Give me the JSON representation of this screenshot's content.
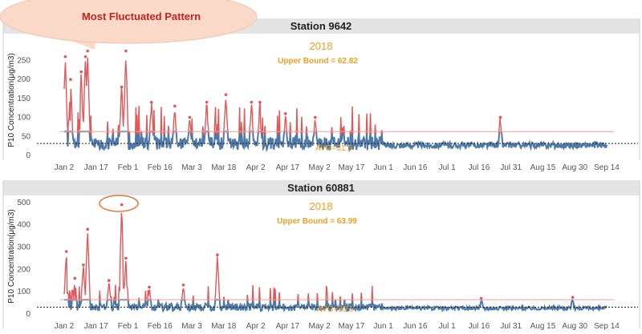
{
  "callout": {
    "text": "Most Fluctuated Pattern"
  },
  "colors": {
    "normal": "#4e79a7",
    "high": "#e15759",
    "bound": "#e8a0a0",
    "annotation": "#f0a020",
    "header_bg": "#e4e4e4"
  },
  "x_ticks": [
    "Jan 2",
    "Jan 17",
    "Feb 1",
    "Feb 16",
    "Mar 3",
    "Mar 18",
    "Apr 2",
    "Apr 17",
    "May 2",
    "May 17",
    "Jun 1",
    "Jun 16",
    "Jul 1",
    "Jul 16",
    "Jul 31",
    "Aug 15",
    "Aug 30",
    "Sep 14"
  ],
  "chart_data": [
    {
      "type": "line",
      "title": "Station 9642",
      "year_label": "2018",
      "upper_bound_label": "Upper Bound = 62.82",
      "upper_bound": 62.82,
      "avg_label": "AVG=31.5",
      "avg": 31.5,
      "ylabel": "P10 Concentration(μg/m3)",
      "yticks": [
        0,
        50,
        100,
        150,
        200,
        250
      ],
      "ylim": [
        0,
        270
      ],
      "x_unit": "days since Jan 2",
      "peaks": [
        {
          "x": 0.5,
          "y": 260
        },
        {
          "x": 3,
          "y": 200
        },
        {
          "x": 8,
          "y": 220
        },
        {
          "x": 10,
          "y": 260
        },
        {
          "x": 11,
          "y": 275
        },
        {
          "x": 27,
          "y": 180
        },
        {
          "x": 29,
          "y": 275
        },
        {
          "x": 41,
          "y": 140
        },
        {
          "x": 52,
          "y": 130
        },
        {
          "x": 59,
          "y": 100
        },
        {
          "x": 67,
          "y": 140
        },
        {
          "x": 76,
          "y": 160
        },
        {
          "x": 88,
          "y": 140
        },
        {
          "x": 92,
          "y": 140
        },
        {
          "x": 104,
          "y": 110
        },
        {
          "x": 118,
          "y": 100
        },
        {
          "x": 131,
          "y": 70
        },
        {
          "x": 205,
          "y": 100
        }
      ]
    },
    {
      "type": "line",
      "title": "Station 60881",
      "year_label": "2018",
      "upper_bound_label": "Upper Bound = 63.99",
      "upper_bound": 63.99,
      "avg_label": "AVG=30.5",
      "avg": 30.5,
      "ylabel": "P10 Concentration(μg/m3)",
      "yticks": [
        0,
        100,
        200,
        300,
        400,
        500
      ],
      "ylim": [
        0,
        510
      ],
      "x_unit": "days since Jan 2",
      "peaks": [
        {
          "x": 1,
          "y": 280
        },
        {
          "x": 5,
          "y": 160
        },
        {
          "x": 9,
          "y": 220
        },
        {
          "x": 11,
          "y": 380
        },
        {
          "x": 21,
          "y": 150
        },
        {
          "x": 27,
          "y": 490
        },
        {
          "x": 29,
          "y": 250
        },
        {
          "x": 40,
          "y": 120
        },
        {
          "x": 56,
          "y": 130
        },
        {
          "x": 72,
          "y": 265
        },
        {
          "x": 196,
          "y": 70
        },
        {
          "x": 239,
          "y": 75
        }
      ]
    }
  ]
}
